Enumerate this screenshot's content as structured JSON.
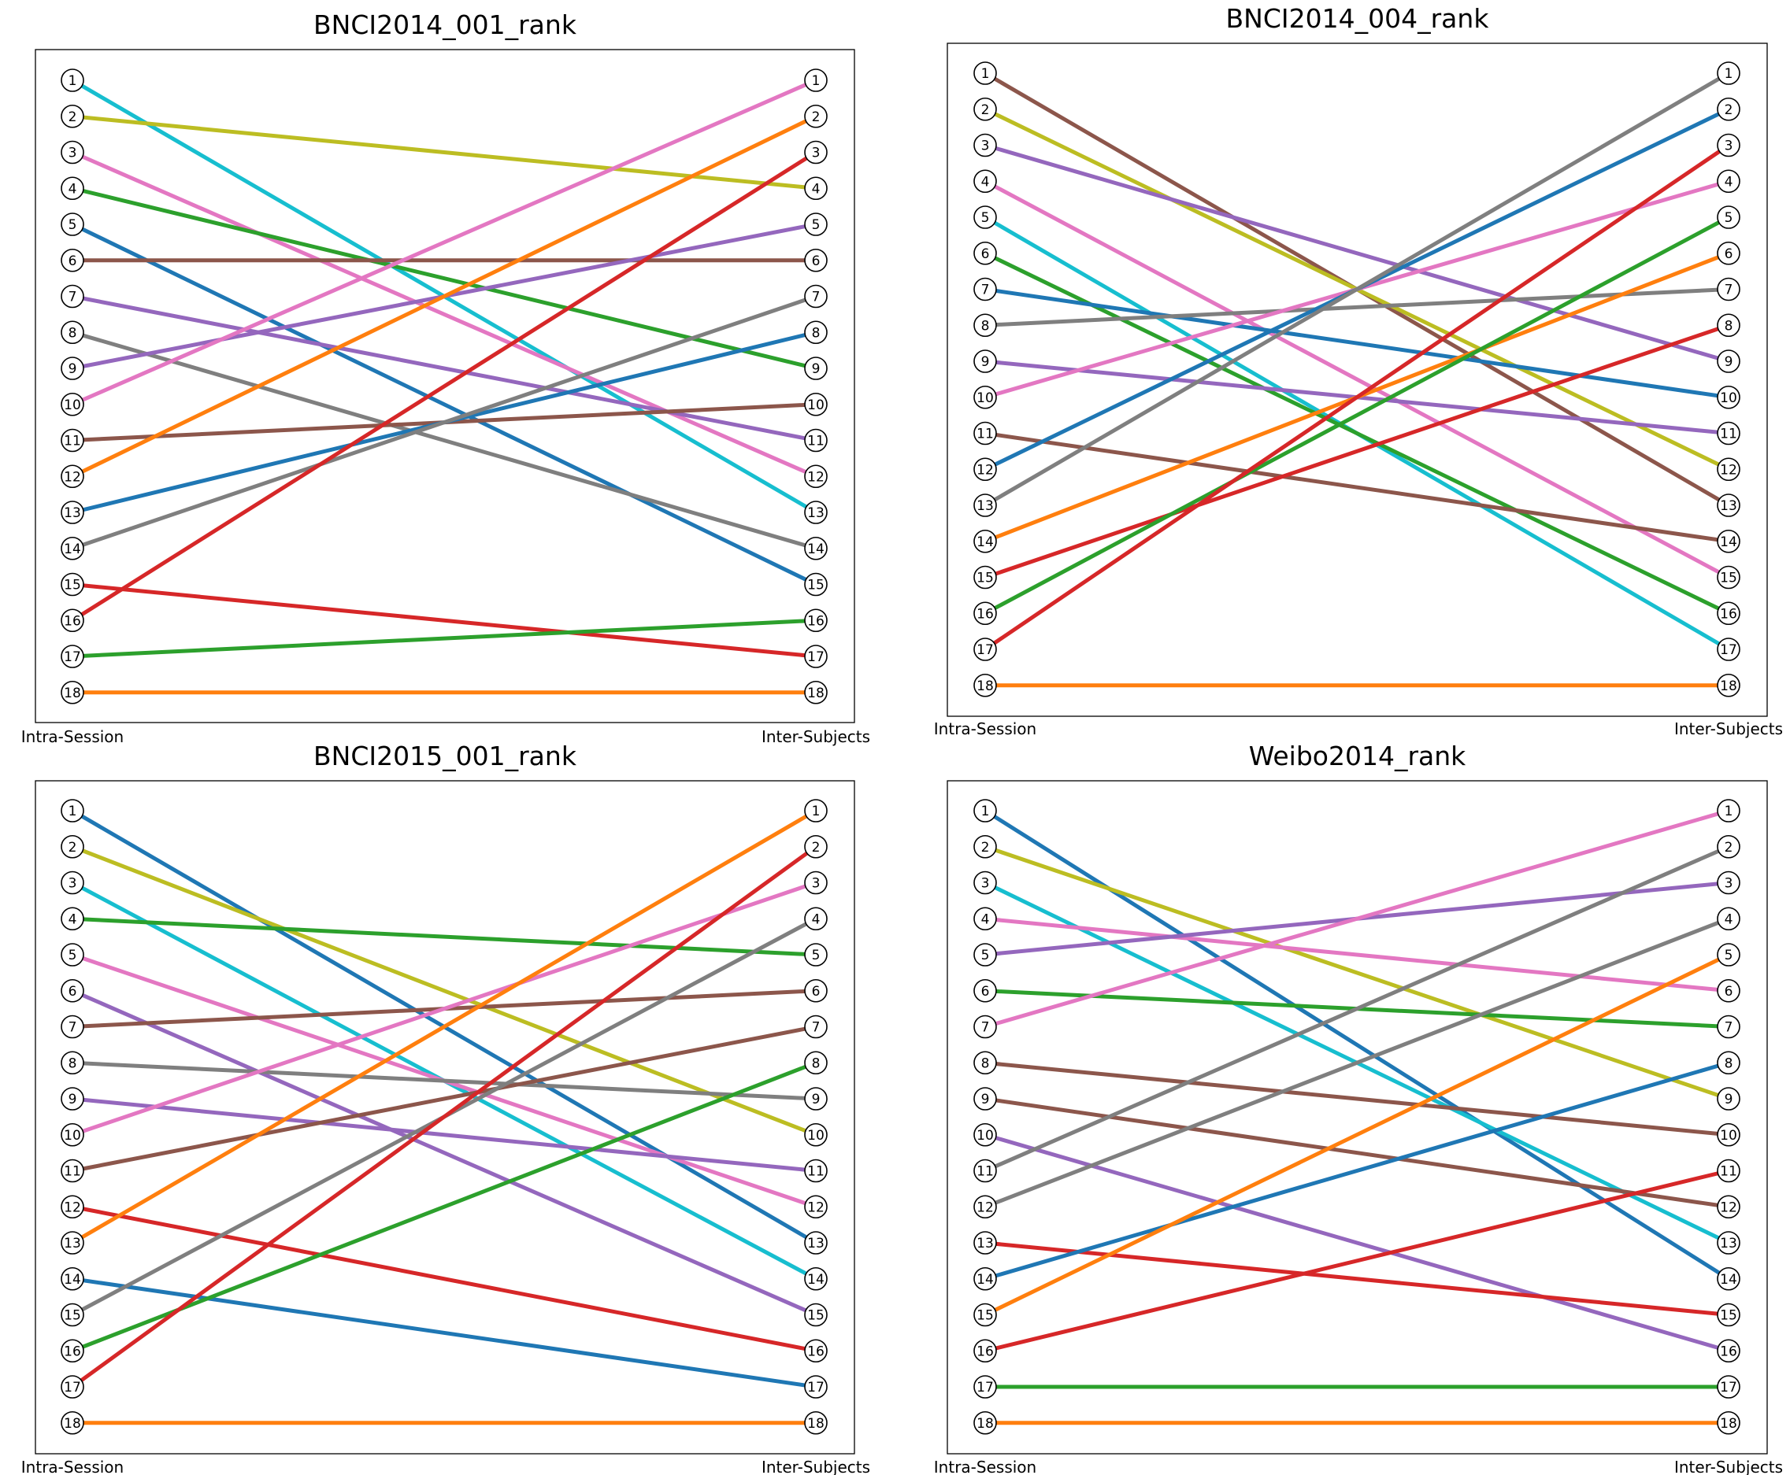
{
  "chart_data": [
    {
      "type": "line",
      "title": "BNCI2014_001_rank",
      "x": [
        "Intra-Session",
        "Inter-Subjects"
      ],
      "ranks": [
        1,
        2,
        3,
        4,
        5,
        6,
        7,
        8,
        9,
        10,
        11,
        12,
        13,
        14,
        15,
        16,
        17,
        18
      ],
      "series": [
        {
          "values": [
            1,
            13
          ],
          "color": "#17becf"
        },
        {
          "values": [
            2,
            4
          ],
          "color": "#bcbd22"
        },
        {
          "values": [
            3,
            12
          ],
          "color": "#e377c2"
        },
        {
          "values": [
            4,
            9
          ],
          "color": "#2ca02c"
        },
        {
          "values": [
            5,
            15
          ],
          "color": "#1f77b4"
        },
        {
          "values": [
            6,
            6
          ],
          "color": "#8c564b"
        },
        {
          "values": [
            7,
            11
          ],
          "color": "#9467bd"
        },
        {
          "values": [
            8,
            14
          ],
          "color": "#7f7f7f"
        },
        {
          "values": [
            9,
            5
          ],
          "color": "#9467bd"
        },
        {
          "values": [
            10,
            1
          ],
          "color": "#e377c2"
        },
        {
          "values": [
            11,
            10
          ],
          "color": "#8c564b"
        },
        {
          "values": [
            12,
            2
          ],
          "color": "#ff7f0e"
        },
        {
          "values": [
            13,
            8
          ],
          "color": "#1f77b4"
        },
        {
          "values": [
            14,
            7
          ],
          "color": "#7f7f7f"
        },
        {
          "values": [
            15,
            17
          ],
          "color": "#d62728"
        },
        {
          "values": [
            16,
            3
          ],
          "color": "#d62728"
        },
        {
          "values": [
            17,
            16
          ],
          "color": "#2ca02c"
        },
        {
          "values": [
            18,
            18
          ],
          "color": "#ff7f0e"
        }
      ]
    },
    {
      "type": "line",
      "title": "BNCI2014_004_rank",
      "x": [
        "Intra-Session",
        "Inter-Subjects"
      ],
      "ranks": [
        1,
        2,
        3,
        4,
        5,
        6,
        7,
        8,
        9,
        10,
        11,
        12,
        13,
        14,
        15,
        16,
        17,
        18
      ],
      "series": [
        {
          "values": [
            1,
            13
          ],
          "color": "#8c564b"
        },
        {
          "values": [
            2,
            12
          ],
          "color": "#bcbd22"
        },
        {
          "values": [
            3,
            9
          ],
          "color": "#9467bd"
        },
        {
          "values": [
            4,
            15
          ],
          "color": "#e377c2"
        },
        {
          "values": [
            5,
            17
          ],
          "color": "#17becf"
        },
        {
          "values": [
            6,
            16
          ],
          "color": "#2ca02c"
        },
        {
          "values": [
            7,
            10
          ],
          "color": "#1f77b4"
        },
        {
          "values": [
            8,
            7
          ],
          "color": "#7f7f7f"
        },
        {
          "values": [
            9,
            11
          ],
          "color": "#9467bd"
        },
        {
          "values": [
            10,
            4
          ],
          "color": "#e377c2"
        },
        {
          "values": [
            11,
            14
          ],
          "color": "#8c564b"
        },
        {
          "values": [
            12,
            2
          ],
          "color": "#1f77b4"
        },
        {
          "values": [
            13,
            1
          ],
          "color": "#7f7f7f"
        },
        {
          "values": [
            14,
            6
          ],
          "color": "#ff7f0e"
        },
        {
          "values": [
            15,
            8
          ],
          "color": "#d62728"
        },
        {
          "values": [
            16,
            5
          ],
          "color": "#2ca02c"
        },
        {
          "values": [
            17,
            3
          ],
          "color": "#d62728"
        },
        {
          "values": [
            18,
            18
          ],
          "color": "#ff7f0e"
        }
      ]
    },
    {
      "type": "line",
      "title": "BNCI2015_001_rank",
      "x": [
        "Intra-Session",
        "Inter-Subjects"
      ],
      "ranks": [
        1,
        2,
        3,
        4,
        5,
        6,
        7,
        8,
        9,
        10,
        11,
        12,
        13,
        14,
        15,
        16,
        17,
        18
      ],
      "series": [
        {
          "values": [
            1,
            13
          ],
          "color": "#1f77b4"
        },
        {
          "values": [
            2,
            10
          ],
          "color": "#bcbd22"
        },
        {
          "values": [
            3,
            14
          ],
          "color": "#17becf"
        },
        {
          "values": [
            4,
            5
          ],
          "color": "#2ca02c"
        },
        {
          "values": [
            5,
            12
          ],
          "color": "#e377c2"
        },
        {
          "values": [
            6,
            15
          ],
          "color": "#9467bd"
        },
        {
          "values": [
            7,
            6
          ],
          "color": "#8c564b"
        },
        {
          "values": [
            8,
            9
          ],
          "color": "#7f7f7f"
        },
        {
          "values": [
            9,
            11
          ],
          "color": "#9467bd"
        },
        {
          "values": [
            10,
            3
          ],
          "color": "#e377c2"
        },
        {
          "values": [
            11,
            7
          ],
          "color": "#8c564b"
        },
        {
          "values": [
            12,
            16
          ],
          "color": "#d62728"
        },
        {
          "values": [
            13,
            1
          ],
          "color": "#ff7f0e"
        },
        {
          "values": [
            14,
            17
          ],
          "color": "#1f77b4"
        },
        {
          "values": [
            15,
            4
          ],
          "color": "#7f7f7f"
        },
        {
          "values": [
            16,
            8
          ],
          "color": "#2ca02c"
        },
        {
          "values": [
            17,
            2
          ],
          "color": "#d62728"
        },
        {
          "values": [
            18,
            18
          ],
          "color": "#ff7f0e"
        }
      ]
    },
    {
      "type": "line",
      "title": "Weibo2014_rank",
      "x": [
        "Intra-Session",
        "Inter-Subjects"
      ],
      "ranks": [
        1,
        2,
        3,
        4,
        5,
        6,
        7,
        8,
        9,
        10,
        11,
        12,
        13,
        14,
        15,
        16,
        17,
        18
      ],
      "series": [
        {
          "values": [
            1,
            14
          ],
          "color": "#1f77b4"
        },
        {
          "values": [
            2,
            9
          ],
          "color": "#bcbd22"
        },
        {
          "values": [
            3,
            13
          ],
          "color": "#17becf"
        },
        {
          "values": [
            4,
            6
          ],
          "color": "#e377c2"
        },
        {
          "values": [
            5,
            3
          ],
          "color": "#9467bd"
        },
        {
          "values": [
            6,
            7
          ],
          "color": "#2ca02c"
        },
        {
          "values": [
            7,
            1
          ],
          "color": "#e377c2"
        },
        {
          "values": [
            8,
            10
          ],
          "color": "#8c564b"
        },
        {
          "values": [
            9,
            12
          ],
          "color": "#8c564b"
        },
        {
          "values": [
            10,
            16
          ],
          "color": "#9467bd"
        },
        {
          "values": [
            11,
            2
          ],
          "color": "#7f7f7f"
        },
        {
          "values": [
            12,
            4
          ],
          "color": "#7f7f7f"
        },
        {
          "values": [
            13,
            15
          ],
          "color": "#d62728"
        },
        {
          "values": [
            14,
            8
          ],
          "color": "#1f77b4"
        },
        {
          "values": [
            15,
            5
          ],
          "color": "#ff7f0e"
        },
        {
          "values": [
            16,
            11
          ],
          "color": "#d62728"
        },
        {
          "values": [
            17,
            17
          ],
          "color": "#2ca02c"
        },
        {
          "values": [
            18,
            18
          ],
          "color": "#ff7f0e"
        }
      ]
    }
  ]
}
